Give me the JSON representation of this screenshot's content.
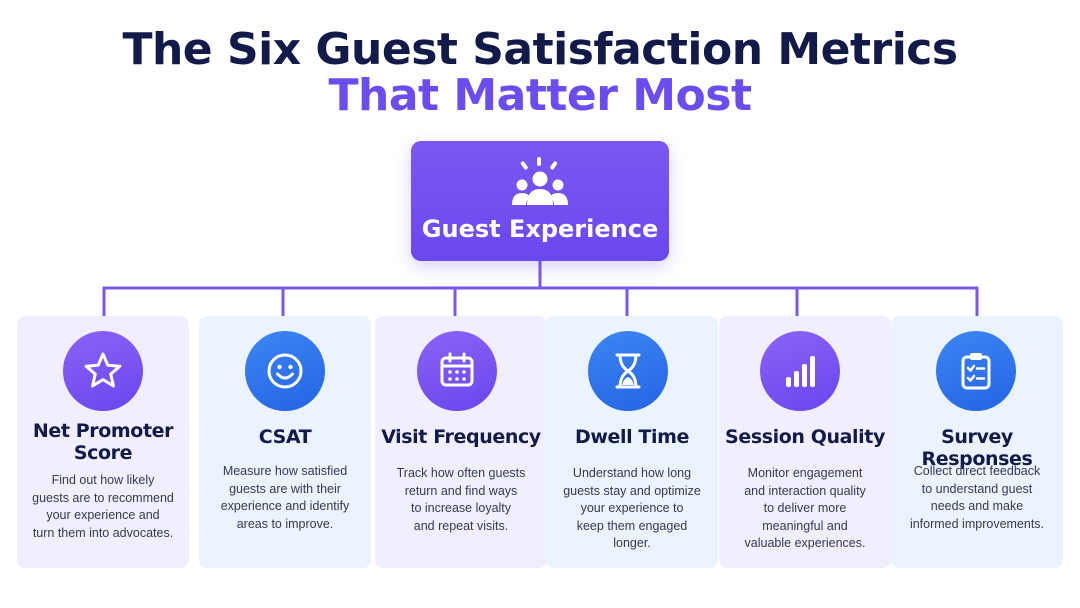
{
  "title": {
    "line1": "The Six Guest Satisfaction Metrics",
    "line2": "That Matter Most"
  },
  "colors": {
    "navy": "#121a4a",
    "purple": "#6a4cf0",
    "blue": "#2563e4",
    "connector": "#7b57f2"
  },
  "root": {
    "label": "Guest Experience",
    "icon": "guest-group-icon"
  },
  "metrics": [
    {
      "title": "Net Promoter Score",
      "title_lines": [
        "Net Promoter",
        "Score"
      ],
      "description_lines": [
        "Find out how likely",
        "guests are to recommend",
        "your experience and",
        "turn them into advocates."
      ],
      "icon": "star-icon",
      "theme": "purple"
    },
    {
      "title": "CSAT",
      "title_lines": [
        "CSAT"
      ],
      "description_lines": [
        "Measure how satisfied",
        "guests are with their",
        "experience and identify",
        "areas to improve."
      ],
      "icon": "smiley-icon",
      "theme": "blue"
    },
    {
      "title": "Visit Frequency",
      "title_lines": [
        "Visit Frequency"
      ],
      "description_lines": [
        "Track how often guests",
        "return and find ways",
        "to increase loyalty",
        "and repeat visits."
      ],
      "icon": "calendar-icon",
      "theme": "purple"
    },
    {
      "title": "Dwell Time",
      "title_lines": [
        "Dwell Time"
      ],
      "description_lines": [
        "Understand how long",
        "guests stay and optimize",
        "your experience to",
        "keep them engaged",
        "longer."
      ],
      "icon": "hourglass-icon",
      "theme": "blue"
    },
    {
      "title": "Session Quality",
      "title_lines": [
        "Session Quality"
      ],
      "description_lines": [
        "Monitor engagement",
        "and interaction quality",
        "to deliver more",
        "meaningful and",
        "valuable experiences."
      ],
      "icon": "signal-bars-icon",
      "theme": "purple"
    },
    {
      "title": "Survey Responses",
      "title_lines": [
        "Survey Responses"
      ],
      "description_lines": [
        "Collect direct feedback",
        "to understand guest",
        "needs and make",
        "informed improvements."
      ],
      "icon": "clipboard-checklist-icon",
      "theme": "blue"
    }
  ]
}
